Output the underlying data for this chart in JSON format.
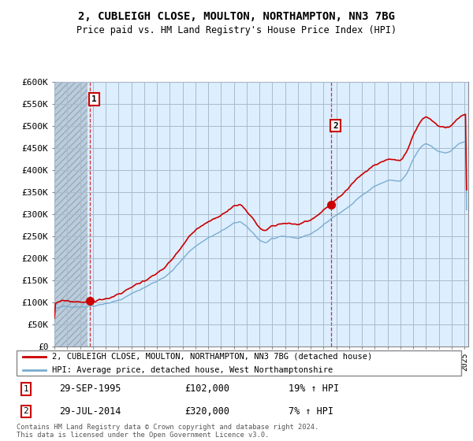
{
  "title": "2, CUBLEIGH CLOSE, MOULTON, NORTHAMPTON, NN3 7BG",
  "subtitle": "Price paid vs. HM Land Registry's House Price Index (HPI)",
  "ylim": [
    0,
    600000
  ],
  "yticks": [
    0,
    50000,
    100000,
    150000,
    200000,
    250000,
    300000,
    350000,
    400000,
    450000,
    500000,
    550000,
    600000
  ],
  "ytick_labels": [
    "£0",
    "£50K",
    "£100K",
    "£150K",
    "£200K",
    "£250K",
    "£300K",
    "£350K",
    "£400K",
    "£450K",
    "£500K",
    "£550K",
    "£600K"
  ],
  "xlim_left": 1993.0,
  "xlim_right": 2025.3,
  "purchase1_date": 1995.75,
  "purchase1_price": 102000,
  "purchase2_date": 2014.58,
  "purchase2_price": 320000,
  "legend_line1": "2, CUBLEIGH CLOSE, MOULTON, NORTHAMPTON, NN3 7BG (detached house)",
  "legend_line2": "HPI: Average price, detached house, West Northamptonshire",
  "line1_color": "#cc0000",
  "line2_color": "#7aadcf",
  "footer": "Contains HM Land Registry data © Crown copyright and database right 2024.\nThis data is licensed under the Open Government Licence v3.0.",
  "bg_color": "#ddeeff",
  "hatch_color": "#bbccdd",
  "grid_color": "#aabbcc"
}
